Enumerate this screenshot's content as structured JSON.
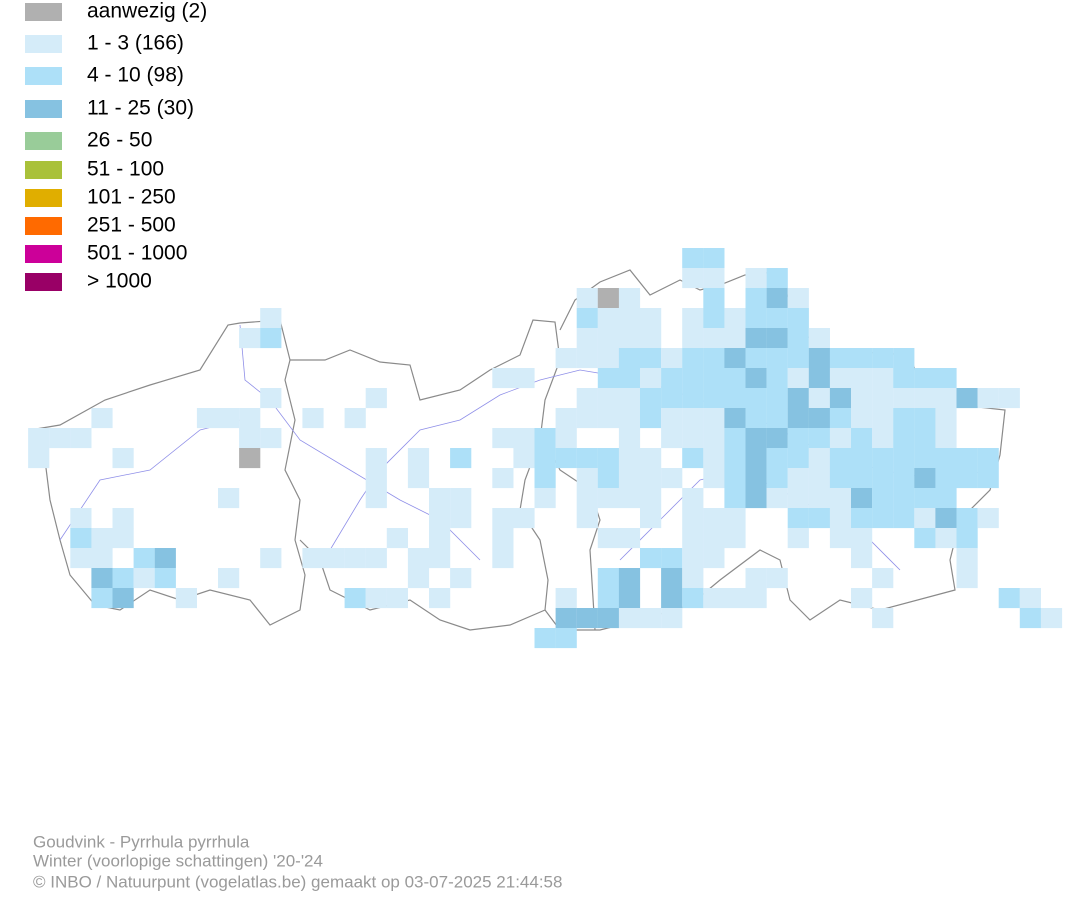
{
  "legend": [
    {
      "label": "aanwezig (2)",
      "color": "#b0b0b0"
    },
    {
      "label": "1 - 3 (166)",
      "color": "#d5ecf9"
    },
    {
      "label": "4 - 10 (98)",
      "color": "#ade0f8"
    },
    {
      "label": "11 - 25 (30)",
      "color": "#86c2e1"
    },
    {
      "label": "26 - 50",
      "color": "#99cc99"
    },
    {
      "label": "51 - 100",
      "color": "#a9c13a"
    },
    {
      "label": "101 - 250",
      "color": "#e0ae00"
    },
    {
      "label": "251 - 500",
      "color": "#ff6a00"
    },
    {
      "label": "501 - 1000",
      "color": "#cc0099"
    },
    {
      "label": "> 1000",
      "color": "#990066"
    }
  ],
  "footer": [
    "Goudvink - Pyrrhula pyrrhula",
    "Winter (voorlopige schattingen) '20-'24",
    "© INBO / Natuurpunt (vogelatlas.be) gemaakt op 03-07-2025 21:44:58"
  ]
}
